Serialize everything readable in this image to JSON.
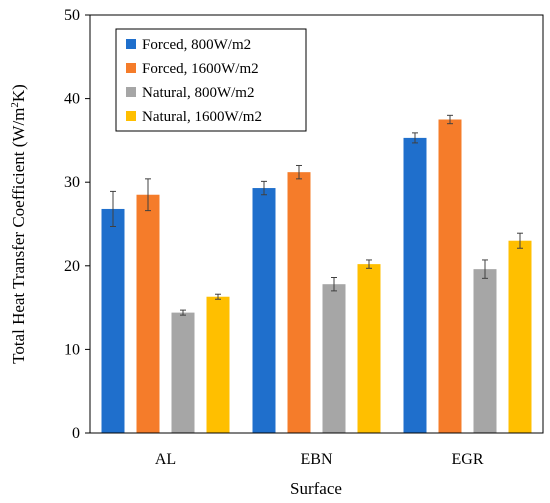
{
  "chart_data": {
    "type": "bar",
    "categories": [
      "AL",
      "EBN",
      "EGR"
    ],
    "series": [
      {
        "name": "Forced, 800W/m2",
        "color": "#1f6fcc",
        "values": [
          26.8,
          29.3,
          35.3
        ],
        "errors": [
          2.1,
          0.8,
          0.6
        ]
      },
      {
        "name": "Forced, 1600W/m2",
        "color": "#f57c2a",
        "values": [
          28.5,
          31.2,
          37.5
        ],
        "errors": [
          1.9,
          0.8,
          0.5
        ]
      },
      {
        "name": "Natural, 800W/m2",
        "color": "#a6a6a6",
        "values": [
          14.4,
          17.8,
          19.6
        ],
        "errors": [
          0.3,
          0.8,
          1.1
        ]
      },
      {
        "name": "Natural, 1600W/m2",
        "color": "#ffbf00",
        "values": [
          16.3,
          20.2,
          23.0
        ],
        "errors": [
          0.3,
          0.5,
          0.9
        ]
      }
    ],
    "xlabel": "Surface",
    "ylabel_main": "Total Heat Transfer Coefficient (W/m",
    "ylabel_sup": "2",
    "ylabel_end": "K)",
    "ylim": [
      0,
      50
    ],
    "yticks": [
      0,
      10,
      20,
      30,
      40,
      50
    ],
    "grid": false,
    "legend_position": "top-left"
  }
}
